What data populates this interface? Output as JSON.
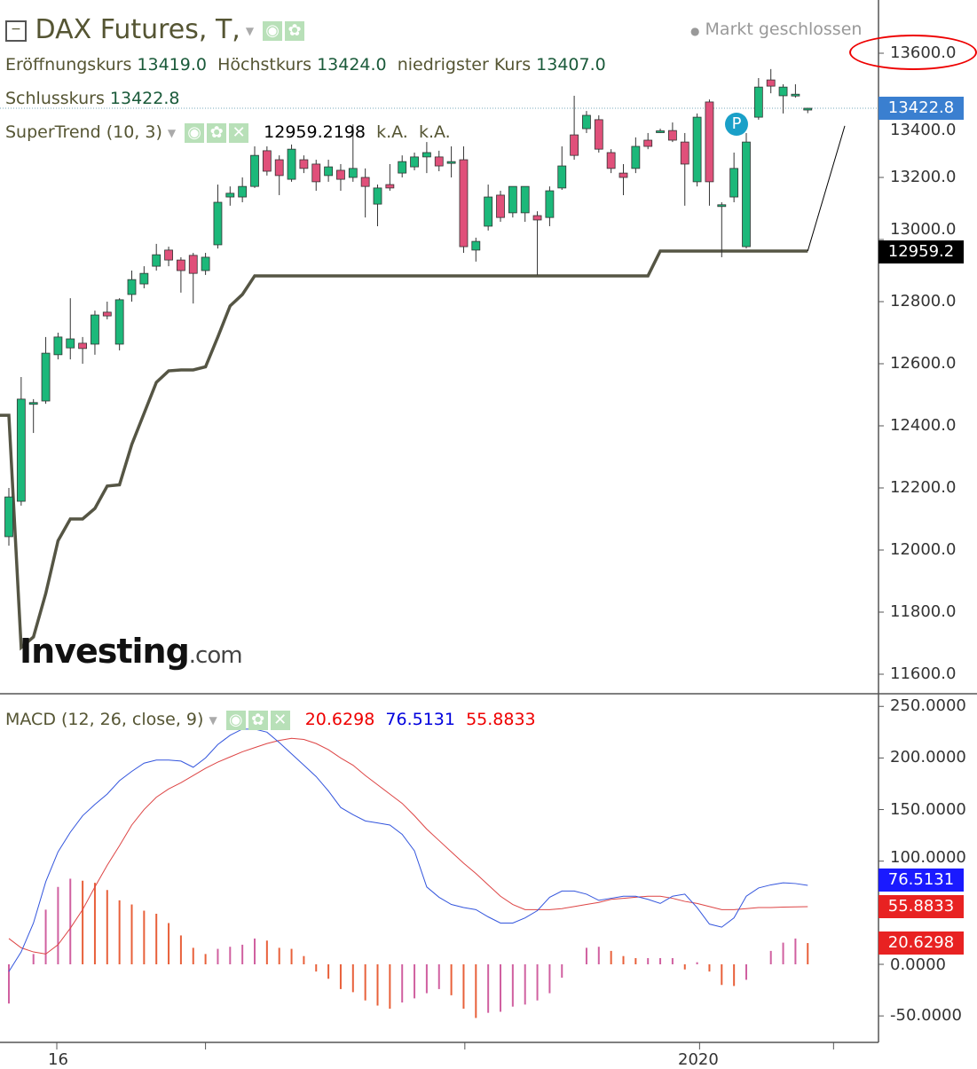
{
  "header": {
    "title": "DAX Futures, T,",
    "market_status": "Markt geschlossen",
    "open_label": "Eröffnungskurs",
    "open": "13419.0",
    "high_label": "Höchstkurs",
    "high": "13424.0",
    "low_label": "niedrigster Kurs",
    "low": "13407.0",
    "close_label": "Schlusskurs",
    "close": "13422.8"
  },
  "supertrend": {
    "label": "SuperTrend (10, 3)",
    "value": "12959.2198",
    "v2": "k.A.",
    "v3": "k.A."
  },
  "macd": {
    "label": "MACD (12, 26, close, 9)",
    "hist": "20.6298",
    "macd": "76.5131",
    "signal": "55.8833"
  },
  "logo": "Investing.com",
  "marker": "P",
  "price_axis": [
    "13600.0",
    "13400.0",
    "13200.0",
    "13000.0",
    "12800.0",
    "12600.0",
    "12400.0",
    "12200.0",
    "12000.0",
    "11800.0",
    "11600.0"
  ],
  "price_tags": {
    "last": "13422.8",
    "supertrend": "12959.2"
  },
  "macd_axis": [
    "250.0000",
    "200.0000",
    "150.0000",
    "100.0000",
    "0.0000",
    "-50.0000"
  ],
  "macd_tags": {
    "macd": "76.5131",
    "signal": "55.8833",
    "hist": "20.6298"
  },
  "x_axis": [
    "16",
    "2020"
  ],
  "colors": {
    "up": "#1cb87a",
    "down": "#e0507a",
    "supertrend": "#555544",
    "macd": "#3355dd",
    "signal": "#dd4444",
    "last_tag": "#3a7fd0",
    "annotation": "#e00000"
  },
  "chart_data": {
    "type": "candlestick",
    "ohlc": [
      [
        12043,
        12200,
        12014,
        12171
      ],
      [
        12157,
        12557,
        12143,
        12486
      ],
      [
        12471,
        12486,
        12377,
        12475
      ],
      [
        12480,
        12686,
        12471,
        12634
      ],
      [
        12629,
        12700,
        12614,
        12686
      ],
      [
        12651,
        12811,
        12614,
        12680
      ],
      [
        12666,
        12686,
        12600,
        12649
      ],
      [
        12663,
        12771,
        12629,
        12757
      ],
      [
        12766,
        12800,
        12743,
        12754
      ],
      [
        12663,
        12811,
        12643,
        12806
      ],
      [
        12823,
        12900,
        12800,
        12871
      ],
      [
        12857,
        12914,
        12843,
        12891
      ],
      [
        12914,
        12986,
        12900,
        12951
      ],
      [
        12966,
        12977,
        12914,
        12934
      ],
      [
        12934,
        12943,
        12829,
        12900
      ],
      [
        12949,
        12957,
        12794,
        12891
      ],
      [
        12900,
        12957,
        12886,
        12943
      ],
      [
        12983,
        13177,
        12971,
        13120
      ],
      [
        13137,
        13171,
        13109,
        13149
      ],
      [
        13137,
        13200,
        13120,
        13171
      ],
      [
        13171,
        13300,
        13166,
        13271
      ],
      [
        13286,
        13300,
        13206,
        13220
      ],
      [
        13257,
        13271,
        13143,
        13206
      ],
      [
        13194,
        13306,
        13186,
        13291
      ],
      [
        13257,
        13271,
        13214,
        13229
      ],
      [
        13243,
        13257,
        13157,
        13186
      ],
      [
        13206,
        13257,
        13186,
        13234
      ],
      [
        13223,
        13243,
        13157,
        13194
      ],
      [
        13200,
        13371,
        13186,
        13229
      ],
      [
        13200,
        13229,
        13071,
        13171
      ],
      [
        13114,
        13177,
        13043,
        13166
      ],
      [
        13177,
        13243,
        13157,
        13166
      ],
      [
        13214,
        13271,
        13200,
        13251
      ],
      [
        13234,
        13280,
        13223,
        13266
      ],
      [
        13266,
        13314,
        13214,
        13280
      ],
      [
        13266,
        13286,
        13220,
        13237
      ],
      [
        13251,
        13300,
        13200,
        13251
      ],
      [
        13257,
        13300,
        12957,
        12977
      ],
      [
        12966,
        13006,
        12929,
        12994
      ],
      [
        13043,
        13177,
        13029,
        13137
      ],
      [
        13143,
        13157,
        13057,
        13071
      ],
      [
        13086,
        13171,
        13071,
        13171
      ],
      [
        13086,
        13171,
        13057,
        13171
      ],
      [
        13077,
        13091,
        12886,
        13063
      ],
      [
        13071,
        13171,
        13043,
        13157
      ],
      [
        13166,
        13300,
        13160,
        13237
      ],
      [
        13337,
        13463,
        13257,
        13271
      ],
      [
        13357,
        13414,
        13343,
        13400
      ],
      [
        13386,
        13400,
        13280,
        13291
      ],
      [
        13280,
        13291,
        13214,
        13229
      ],
      [
        13214,
        13243,
        13143,
        13200
      ],
      [
        13229,
        13329,
        13214,
        13300
      ],
      [
        13320,
        13343,
        13291,
        13300
      ],
      [
        13349,
        13357,
        13343,
        13350
      ],
      [
        13351,
        13377,
        13314,
        13320
      ],
      [
        13314,
        13343,
        13109,
        13243
      ],
      [
        13186,
        13406,
        13171,
        13394
      ],
      [
        13443,
        13451,
        13109,
        13186
      ],
      [
        13109,
        13120,
        12943,
        13112
      ],
      [
        13137,
        13280,
        13120,
        13229
      ],
      [
        12977,
        13343,
        12971,
        13314
      ],
      [
        13394,
        13520,
        13386,
        13491
      ],
      [
        13514,
        13549,
        13471,
        13494
      ],
      [
        13463,
        13500,
        13406,
        13491
      ],
      [
        13466,
        13500,
        13457,
        13468
      ],
      [
        13419,
        13424,
        13407,
        13422.8
      ]
    ],
    "supertrend": [
      12434,
      11686,
      11720,
      11860,
      12030,
      12100,
      12100,
      12134,
      12206,
      12210,
      12340,
      12440,
      12540,
      12577,
      12580,
      12580,
      12590,
      12686,
      12786,
      12823,
      12883,
      12883,
      12883,
      12883,
      12883,
      12883,
      12883,
      12883,
      12883,
      12883,
      12883,
      12883,
      12883,
      12883,
      12883,
      12883,
      12883,
      12883,
      12883,
      12883,
      12883,
      12883,
      12883,
      12883,
      12883,
      12883,
      12883,
      12883,
      12883,
      12883,
      12883,
      12883,
      12883,
      12963,
      12963,
      12963,
      12963,
      12963,
      12963,
      12963,
      12963,
      12963,
      12963,
      12963,
      12963,
      12963
    ],
    "supertrend_projection": 13366,
    "macd_line": [
      -7,
      12,
      40,
      80,
      109,
      128,
      144,
      155,
      165,
      178,
      187,
      195,
      198,
      198,
      197,
      191,
      200,
      213,
      222,
      228,
      228,
      225,
      215,
      204,
      193,
      182,
      168,
      152,
      145,
      139,
      137,
      135,
      126,
      110,
      75,
      65,
      58,
      55,
      53,
      46,
      40,
      40,
      45,
      52,
      65,
      71,
      71,
      68,
      62,
      64,
      66,
      66,
      63,
      59,
      66,
      68,
      55,
      39,
      36,
      45,
      66,
      74,
      77,
      79,
      78.3,
      76.5
    ],
    "signal_line": [
      25,
      16,
      12,
      10,
      19,
      35,
      53,
      75,
      96,
      115,
      135,
      150,
      162,
      170,
      176,
      183,
      190,
      196,
      201,
      206,
      210,
      214,
      217,
      219,
      218,
      214,
      208,
      200,
      193,
      183,
      174,
      165,
      156,
      144,
      131,
      120,
      109,
      98,
      88,
      77,
      66,
      58,
      53,
      53,
      53,
      54,
      56,
      58,
      60,
      63,
      64,
      65,
      66,
      66,
      64,
      61,
      59,
      56,
      53,
      53,
      54,
      55,
      55,
      55.5,
      55.7,
      55.9
    ],
    "histogram": [
      -38,
      0,
      10,
      53,
      75,
      83,
      81,
      79,
      72,
      62,
      58,
      52,
      49,
      40,
      28,
      16,
      10,
      15,
      17,
      19,
      25,
      23,
      16,
      15,
      8,
      -7,
      -14,
      -24,
      -27,
      -35,
      -40,
      -43,
      -37,
      -33,
      -28,
      -24,
      -30,
      -43,
      -52,
      -47,
      -46,
      -41,
      -39,
      -35,
      -28,
      -13,
      0,
      16,
      17,
      13,
      8,
      6,
      6,
      6,
      6,
      -5,
      2,
      -7,
      -20,
      -21,
      -15,
      0,
      13,
      21,
      25,
      20.6
    ],
    "price_range": [
      11600,
      13600
    ],
    "macd_range": [
      -50,
      250
    ]
  }
}
